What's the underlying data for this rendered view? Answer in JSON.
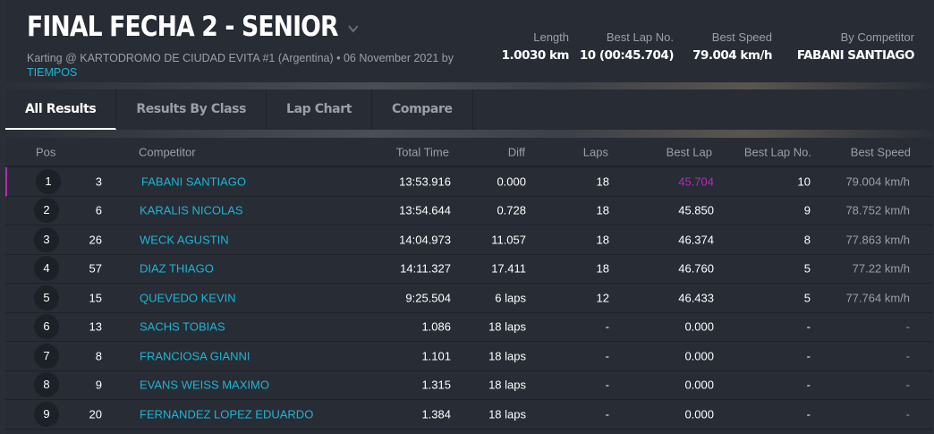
{
  "header": {
    "title": "FINAL FECHA 2 - SENIOR",
    "subtitle": "Karting @ KARTODROMO DE CIUDAD EVITA #1 (Argentina) • 06 November 2021 by",
    "organizer": "TIEMPOS",
    "stats": [
      {
        "label": "Length",
        "value": "1.0030 km"
      },
      {
        "label": "Best Lap No.",
        "value": "10 (00:45.704)"
      },
      {
        "label": "Best Speed",
        "value": "79.004 km/h"
      },
      {
        "label": "By Competitor",
        "value": "FABANI SANTIAGO"
      }
    ]
  },
  "tabs": [
    {
      "label": "All Results",
      "active": true
    },
    {
      "label": "Results By Class"
    },
    {
      "label": "Lap Chart"
    },
    {
      "label": "Compare"
    }
  ],
  "colors": {
    "accent": "#1fb5d4",
    "best": "#b62bb8",
    "panel": "#272c35"
  },
  "table": {
    "headers": [
      "Pos",
      "Competitor",
      "Total Time",
      "Diff",
      "Laps",
      "Best Lap",
      "Best Lap No.",
      "Best Speed"
    ],
    "rows": [
      {
        "pos": "1",
        "no": "3",
        "name": "FABANI SANTIAGO",
        "total": "13:53.916",
        "diff": "0.000",
        "laps": "18",
        "best": "45.704",
        "bestno": "10",
        "speed": "79.004 km/h"
      },
      {
        "pos": "2",
        "no": "6",
        "name": "KARALIS NICOLAS",
        "total": "13:54.644",
        "diff": "0.728",
        "laps": "18",
        "best": "45.850",
        "bestno": "9",
        "speed": "78.752 km/h"
      },
      {
        "pos": "3",
        "no": "26",
        "name": "WECK AGUSTIN",
        "total": "14:04.973",
        "diff": "11.057",
        "laps": "18",
        "best": "46.374",
        "bestno": "8",
        "speed": "77.863 km/h"
      },
      {
        "pos": "4",
        "no": "57",
        "name": "DIAZ THIAGO",
        "total": "14:11.327",
        "diff": "17.411",
        "laps": "18",
        "best": "46.760",
        "bestno": "5",
        "speed": "77.22 km/h"
      },
      {
        "pos": "5",
        "no": "15",
        "name": "QUEVEDO KEVIN",
        "total": "9:25.504",
        "diff": "6 laps",
        "laps": "12",
        "best": "46.433",
        "bestno": "5",
        "speed": "77.764 km/h"
      },
      {
        "pos": "6",
        "no": "13",
        "name": "SACHS TOBIAS",
        "total": "1.086",
        "diff": "18 laps",
        "laps": "-",
        "best": "0.000",
        "bestno": "-",
        "speed": "-"
      },
      {
        "pos": "7",
        "no": "8",
        "name": "FRANCIOSA GIANNI",
        "total": "1.101",
        "diff": "18 laps",
        "laps": "-",
        "best": "0.000",
        "bestno": "-",
        "speed": "-"
      },
      {
        "pos": "8",
        "no": "9",
        "name": "EVANS WEISS MAXIMO",
        "total": "1.315",
        "diff": "18 laps",
        "laps": "-",
        "best": "0.000",
        "bestno": "-",
        "speed": "-"
      },
      {
        "pos": "9",
        "no": "20",
        "name": "FERNANDEZ LOPEZ EDUARDO",
        "total": "1.384",
        "diff": "18 laps",
        "laps": "-",
        "best": "0.000",
        "bestno": "-",
        "speed": "-"
      }
    ]
  }
}
